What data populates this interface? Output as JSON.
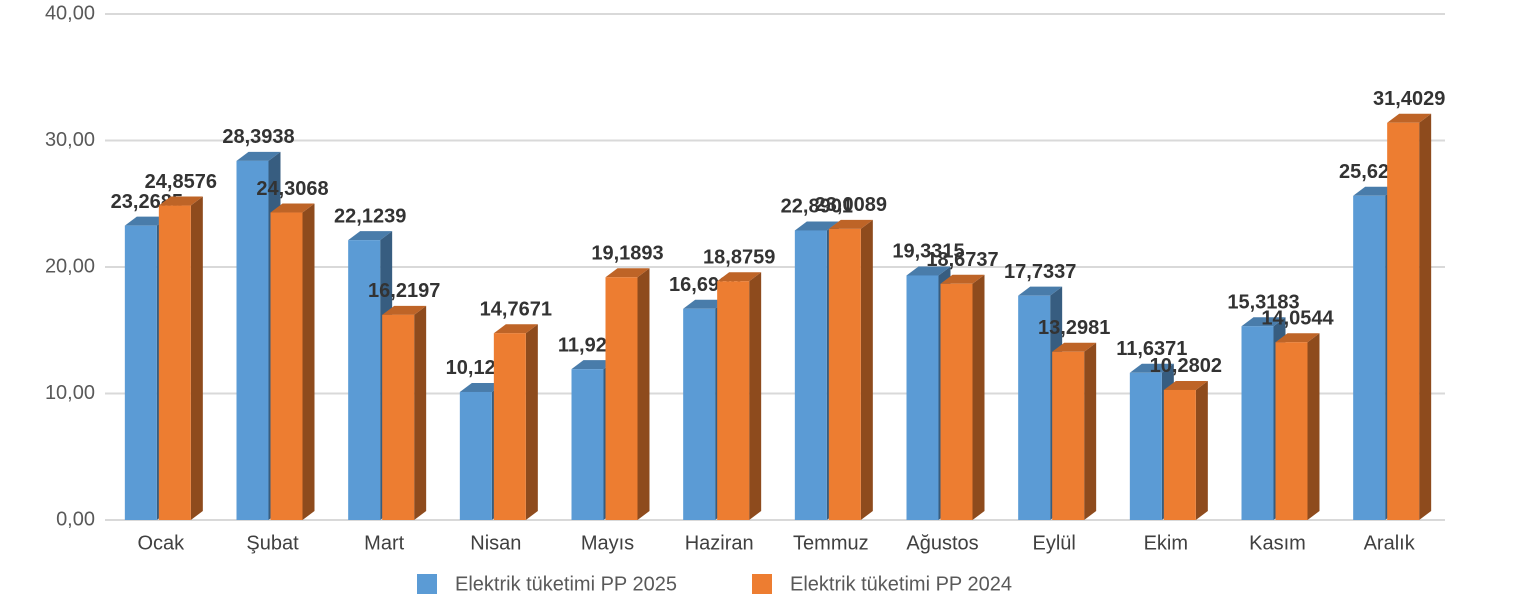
{
  "chart_data": {
    "type": "bar3d",
    "categories": [
      "Ocak",
      "Şubat",
      "Mart",
      "Nisan",
      "Mayıs",
      "Haziran",
      "Temmuz",
      "Ağustos",
      "Eylül",
      "Ekim",
      "Kasım",
      "Aralık"
    ],
    "series": [
      {
        "name": "Elektrik tüketimi PP 2025",
        "color": "#5b9bd5",
        "values": [
          23.2685,
          28.3938,
          22.1239,
          10.1216,
          11.9257,
          16.6998,
          22.8901,
          19.3315,
          17.7337,
          11.6371,
          15.3183,
          25.6276
        ],
        "value_labels": [
          "23,2685",
          "28,3938",
          "22,1239",
          "10,1216",
          "11,9257",
          "16,6998",
          "22,8901",
          "19,3315",
          "17,7337",
          "11,6371",
          "15,3183",
          "25,6276"
        ]
      },
      {
        "name": "Elektrik tüketimi PP 2024",
        "color": "#ed7d31",
        "values": [
          24.8576,
          24.3068,
          16.2197,
          14.7671,
          19.1893,
          18.8759,
          23.0089,
          18.6737,
          13.2981,
          10.2802,
          14.0544,
          31.4029
        ],
        "value_labels": [
          "24,8576",
          "24,3068",
          "16,2197",
          "14,7671",
          "19,1893",
          "18,8759",
          "23,0089",
          "18,6737",
          "13,2981",
          "10,2802",
          "14,0544",
          "31,4029"
        ]
      }
    ],
    "ylim": [
      0,
      40
    ],
    "yticks": [
      {
        "value": 0,
        "label": "0,00"
      },
      {
        "value": 10,
        "label": "10,00"
      },
      {
        "value": 20,
        "label": "20,00"
      },
      {
        "value": 30,
        "label": "30,00"
      },
      {
        "value": 40,
        "label": "40,00"
      }
    ],
    "grid": true,
    "legend": "bottom"
  }
}
